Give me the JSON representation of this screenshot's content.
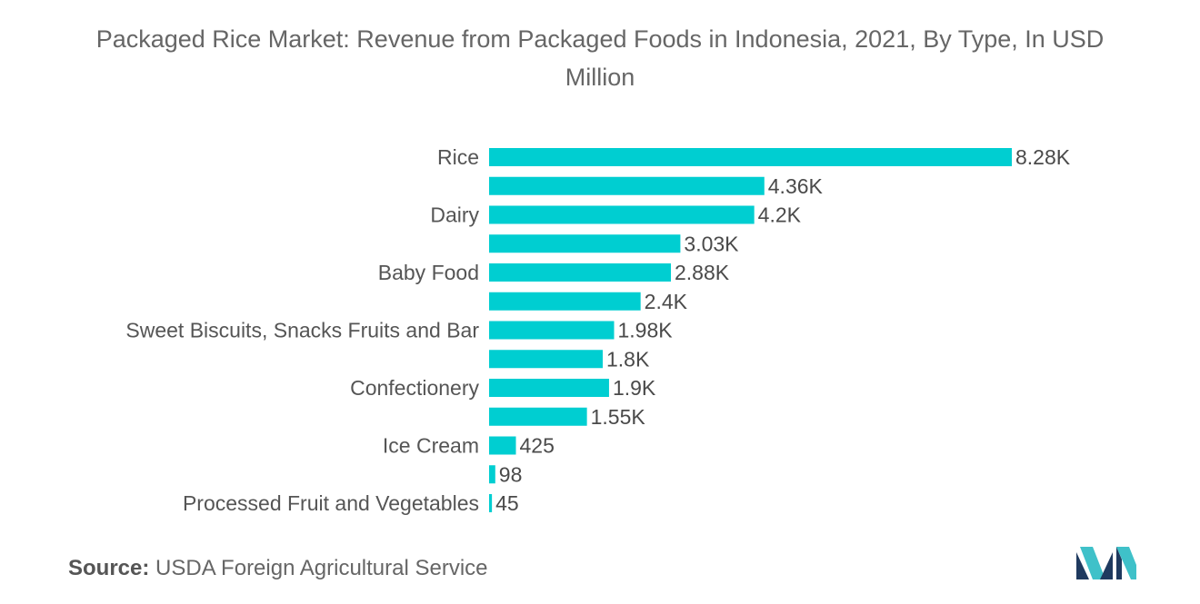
{
  "chart_data": {
    "type": "bar",
    "orientation": "horizontal",
    "title": "Packaged Rice Market: Revenue from Packaged Foods in Indonesia, 2021, By Type, In USD Million",
    "categories": [
      "Rice",
      "",
      "Dairy",
      "",
      "Baby Food",
      "",
      "Sweet Biscuits, Snacks Fruits and Bar",
      "",
      "Confectionery",
      "",
      "Ice Cream",
      "",
      "Processed Fruit and Vegetables"
    ],
    "values": [
      8280,
      4360,
      4200,
      3030,
      2880,
      2400,
      1980,
      1800,
      1900,
      1550,
      425,
      98,
      45
    ],
    "value_labels": [
      "8.28K",
      "4.36K",
      "4.2K",
      "3.03K",
      "2.88K",
      "2.4K",
      "1.98K",
      "1.8K",
      "1.9K",
      "1.55K",
      "425",
      "98",
      "45"
    ],
    "bar_color": "#00CED1",
    "xlim": [
      0,
      8280
    ],
    "grid": false,
    "legend": "none"
  },
  "source": {
    "label": "Source:",
    "text": "USDA Foreign Agricultural Service"
  },
  "logo": {
    "icon": "mordor-intelligence-logo",
    "colors": [
      "#1f3a5f",
      "#3fc1c9"
    ]
  }
}
